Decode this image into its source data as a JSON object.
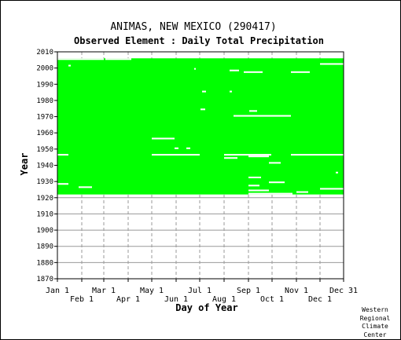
{
  "chart_data": {
    "type": "heatmap",
    "title": "ANIMAS, NEW MEXICO   (290417)",
    "subtitle": "Observed Element : Daily Total Precipitation",
    "xlabel": "Day of Year",
    "ylabel": "Year",
    "y_ticks": [
      2010,
      2000,
      1990,
      1980,
      1970,
      1960,
      1950,
      1940,
      1930,
      1920,
      1910,
      1900,
      1890,
      1880,
      1870
    ],
    "ylim": [
      1870,
      2010
    ],
    "x_ticks_top": [
      "Jan 1",
      "Mar 1",
      "May 1",
      "Jul 1",
      "Sep 1",
      "Nov 1",
      "Dec 31"
    ],
    "x_ticks_bottom": [
      "Feb 1",
      "Apr 1",
      "Jun 1",
      "Aug 1",
      "Oct 1",
      "Dec 1"
    ],
    "x_tick_days": [
      1,
      32,
      60,
      91,
      121,
      152,
      182,
      213,
      244,
      274,
      305,
      335,
      365
    ],
    "xlim": [
      1,
      365
    ],
    "grid": true,
    "data_color": "#00ff00",
    "record_period": [
      1922,
      2005
    ],
    "missing_days": [
      {
        "year": 2005,
        "start": 1,
        "end": 60
      },
      {
        "year": 2005,
        "start": 62,
        "end": 95
      },
      {
        "year": 2002,
        "start": 335,
        "end": 365
      },
      {
        "year": 2001,
        "start": 15,
        "end": 18
      },
      {
        "year": 1999,
        "start": 175,
        "end": 177
      },
      {
        "year": 1998,
        "start": 220,
        "end": 232
      },
      {
        "year": 1997,
        "start": 238,
        "end": 262
      },
      {
        "year": 1997,
        "start": 298,
        "end": 322
      },
      {
        "year": 1985,
        "start": 185,
        "end": 190
      },
      {
        "year": 1985,
        "start": 220,
        "end": 223
      },
      {
        "year": 1974,
        "start": 183,
        "end": 189
      },
      {
        "year": 1973,
        "start": 245,
        "end": 255
      },
      {
        "year": 1970,
        "start": 225,
        "end": 298
      },
      {
        "year": 1956,
        "start": 121,
        "end": 150
      },
      {
        "year": 1950,
        "start": 150,
        "end": 155
      },
      {
        "year": 1950,
        "start": 165,
        "end": 170
      },
      {
        "year": 1946,
        "start": 1,
        "end": 15
      },
      {
        "year": 1946,
        "start": 121,
        "end": 182
      },
      {
        "year": 1946,
        "start": 213,
        "end": 273
      },
      {
        "year": 1946,
        "start": 298,
        "end": 330
      },
      {
        "year": 1946,
        "start": 330,
        "end": 365
      },
      {
        "year": 1945,
        "start": 244,
        "end": 270
      },
      {
        "year": 1944,
        "start": 213,
        "end": 230
      },
      {
        "year": 1941,
        "start": 270,
        "end": 285
      },
      {
        "year": 1935,
        "start": 355,
        "end": 358
      },
      {
        "year": 1932,
        "start": 244,
        "end": 260
      },
      {
        "year": 1929,
        "start": 270,
        "end": 290
      },
      {
        "year": 1928,
        "start": 1,
        "end": 15
      },
      {
        "year": 1927,
        "start": 244,
        "end": 258
      },
      {
        "year": 1926,
        "start": 28,
        "end": 45
      },
      {
        "year": 1925,
        "start": 335,
        "end": 365
      },
      {
        "year": 1924,
        "start": 244,
        "end": 270
      },
      {
        "year": 1923,
        "start": 305,
        "end": 320
      },
      {
        "year": 1922,
        "start": 244,
        "end": 300
      }
    ]
  },
  "footer": {
    "credit_lines": [
      "Western",
      "Regional",
      "Climate",
      "Center"
    ]
  }
}
